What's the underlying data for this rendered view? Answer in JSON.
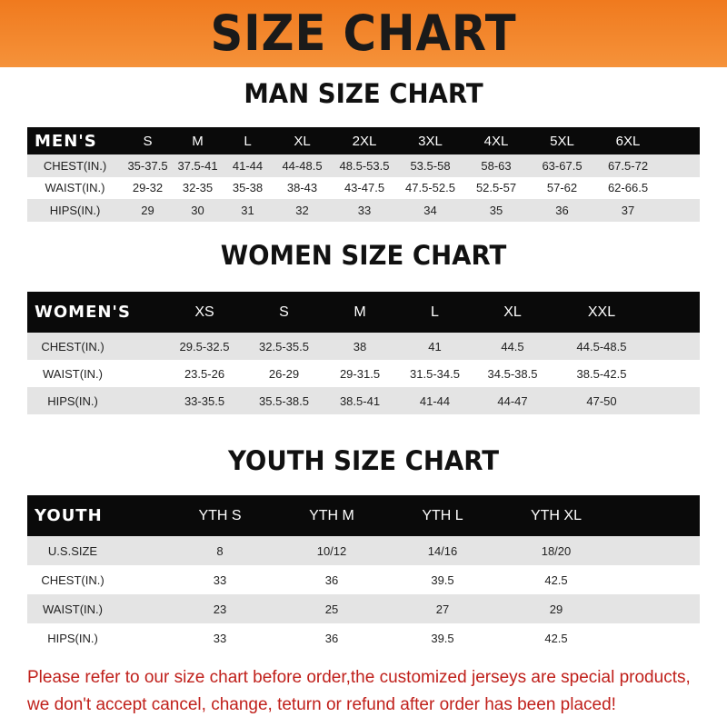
{
  "title": "SIZE CHART",
  "men": {
    "title": "MAN SIZE CHART",
    "header_label": "MEN'S",
    "sizes": [
      "S",
      "M",
      "L",
      "XL",
      "2XL",
      "3XL",
      "4XL",
      "5XL",
      "6XL"
    ],
    "rows": [
      {
        "label": "CHEST(IN.)",
        "values": [
          "35-37.5",
          "37.5-41",
          "41-44",
          "44-48.5",
          "48.5-53.5",
          "53.5-58",
          "58-63",
          "63-67.5",
          "67.5-72"
        ]
      },
      {
        "label": "WAIST(IN.)",
        "values": [
          "29-32",
          "32-35",
          "35-38",
          "38-43",
          "43-47.5",
          "47.5-52.5",
          "52.5-57",
          "57-62",
          "62-66.5"
        ]
      },
      {
        "label": "HIPS(IN.)",
        "values": [
          "29",
          "30",
          "31",
          "32",
          "33",
          "34",
          "35",
          "36",
          "37"
        ]
      }
    ]
  },
  "women": {
    "title": "WOMEN SIZE CHART",
    "header_label": "WOMEN'S",
    "sizes": [
      "XS",
      "S",
      "M",
      "L",
      "XL",
      "XXL"
    ],
    "rows": [
      {
        "label": "CHEST(IN.)",
        "values": [
          "29.5-32.5",
          "32.5-35.5",
          "38",
          "41",
          "44.5",
          "44.5-48.5"
        ]
      },
      {
        "label": "WAIST(IN.)",
        "values": [
          "23.5-26",
          "26-29",
          "29-31.5",
          "31.5-34.5",
          "34.5-38.5",
          "38.5-42.5"
        ]
      },
      {
        "label": "HIPS(IN.)",
        "values": [
          "33-35.5",
          "35.5-38.5",
          "38.5-41",
          "41-44",
          "44-47",
          "47-50"
        ]
      }
    ]
  },
  "youth": {
    "title": "YOUTH SIZE CHART",
    "header_label": "YOUTH",
    "sizes": [
      "YTH S",
      "YTH M",
      "YTH L",
      "YTH XL"
    ],
    "rows": [
      {
        "label": "U.S.SIZE",
        "values": [
          "8",
          "10/12",
          "14/16",
          "18/20"
        ]
      },
      {
        "label": "CHEST(IN.)",
        "values": [
          "33",
          "36",
          "39.5",
          "42.5"
        ]
      },
      {
        "label": "WAIST(IN.)",
        "values": [
          "23",
          "25",
          "27",
          "29"
        ]
      },
      {
        "label": "HIPS(IN.)",
        "values": [
          "33",
          "36",
          "39.5",
          "42.5"
        ]
      }
    ]
  },
  "notice": {
    "line1": "Please refer to our size chart before order,the customized jerseys are special products,",
    "line2": "we don't accept cancel, change, teturn or refund after order has been placed!"
  },
  "colors": {
    "banner": "#f07a1e",
    "header_row": "#0a0a0a",
    "alt_row": "#e4e4e4",
    "notice": "#c0201b"
  }
}
